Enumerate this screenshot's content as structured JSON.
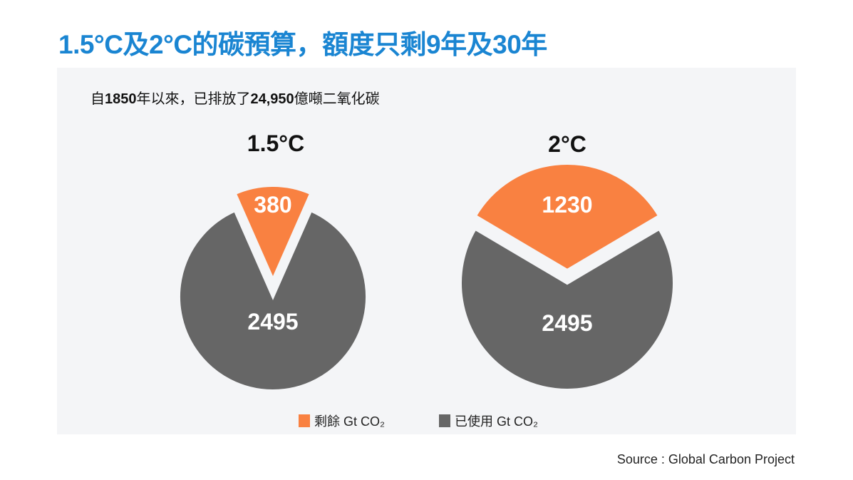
{
  "title": "1.5°C及2°C的碳預算，額度只剩9年及30年",
  "subtitle": {
    "pre": "自",
    "year": "1850",
    "mid": "年以來，已排放了",
    "amount": "24,950",
    "post": "億噸二氧化碳"
  },
  "source": "Source : Global Carbon Project",
  "colors": {
    "remaining": "#f98141",
    "used": "#666666",
    "title": "#1a85d2"
  },
  "chart_data": [
    {
      "type": "pie",
      "title": "1.5°C",
      "slices": [
        {
          "label": "剩餘 Gt CO₂",
          "value": 380
        },
        {
          "label": "已使用 Gt CO₂",
          "value": 2495
        }
      ]
    },
    {
      "type": "pie",
      "title": "2°C",
      "slices": [
        {
          "label": "剩餘 Gt CO₂",
          "value": 1230
        },
        {
          "label": "已使用 Gt CO₂",
          "value": 2495
        }
      ]
    }
  ],
  "legend": [
    {
      "label": "剩餘 Gt CO₂"
    },
    {
      "label": "已使用 Gt CO₂"
    }
  ]
}
